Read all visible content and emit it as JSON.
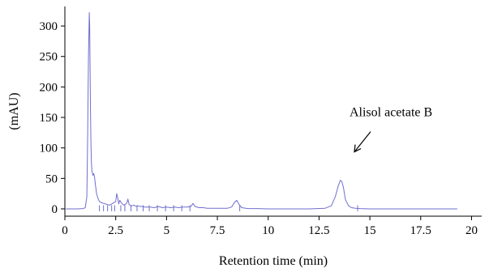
{
  "chart_data": {
    "type": "line",
    "xlabel": "Retention time (min)",
    "ylabel": "(mAU)",
    "xlim": [
      0,
      20.5
    ],
    "ylim": [
      -12,
      332
    ],
    "xticks": [
      0,
      2.5,
      5,
      7.5,
      10,
      12.5,
      15,
      17.5,
      20
    ],
    "yticks": [
      0,
      50,
      100,
      150,
      200,
      250,
      300
    ],
    "xtick_labels": [
      "0",
      "2.5",
      "5",
      "7.5",
      "10",
      "12.5",
      "15",
      "17.5",
      "20"
    ],
    "ytick_labels": [
      "0",
      "50",
      "100",
      "150",
      "200",
      "250",
      "300"
    ],
    "line_color": "#6f6fcf",
    "axis_color": "#000000",
    "series": [
      {
        "x": [
          0.05,
          0.6,
          0.9,
          1.0,
          1.08,
          1.12,
          1.16,
          1.2,
          1.22,
          1.24,
          1.26,
          1.28,
          1.3,
          1.33,
          1.38,
          1.42,
          1.46,
          1.5,
          1.56,
          1.62,
          1.7,
          1.8,
          1.9,
          2.0,
          2.1,
          2.2,
          2.3,
          2.4,
          2.5,
          2.55,
          2.6,
          2.65,
          2.7,
          2.8,
          2.9,
          3.0,
          3.05,
          3.1,
          3.15,
          3.2,
          3.3,
          3.4,
          3.5,
          3.6,
          3.7,
          3.8,
          3.9,
          4.0,
          4.2,
          4.4,
          4.6,
          4.8,
          5.0,
          5.2,
          5.4,
          5.6,
          5.8,
          6.0,
          6.2,
          6.3,
          6.4,
          6.6,
          6.8,
          7.0,
          7.5,
          8.0,
          8.2,
          8.35,
          8.45,
          8.55,
          8.7,
          9.0,
          9.5,
          10.0,
          11.0,
          12.0,
          12.8,
          13.1,
          13.3,
          13.45,
          13.55,
          13.62,
          13.7,
          13.8,
          13.95,
          14.1,
          14.3,
          14.5,
          15.0,
          16.0,
          17.0,
          18.0,
          19.0,
          19.3
        ],
        "y": [
          0,
          0,
          0.5,
          2,
          20,
          120,
          250,
          322,
          300,
          230,
          160,
          110,
          80,
          62,
          55,
          58,
          52,
          40,
          25,
          18,
          12,
          10,
          9,
          8,
          7,
          6,
          8,
          10,
          12,
          25,
          18,
          8,
          14,
          9,
          6,
          8,
          10,
          16,
          8,
          6,
          5,
          6,
          4,
          5,
          4,
          4,
          3,
          3,
          3,
          2,
          4,
          2,
          3,
          2,
          3,
          2,
          3,
          3,
          4,
          9,
          4,
          2,
          2,
          1,
          1,
          1,
          3,
          11,
          14,
          8,
          2,
          0.5,
          0.5,
          0,
          0,
          0,
          1,
          5,
          20,
          38,
          47,
          45,
          35,
          15,
          5,
          2,
          1,
          0.5,
          0,
          0,
          0,
          0,
          0,
          0
        ]
      }
    ],
    "annotations": [
      {
        "text": "Alisol acetate B",
        "x": 13.6,
        "y": 47
      }
    ]
  }
}
